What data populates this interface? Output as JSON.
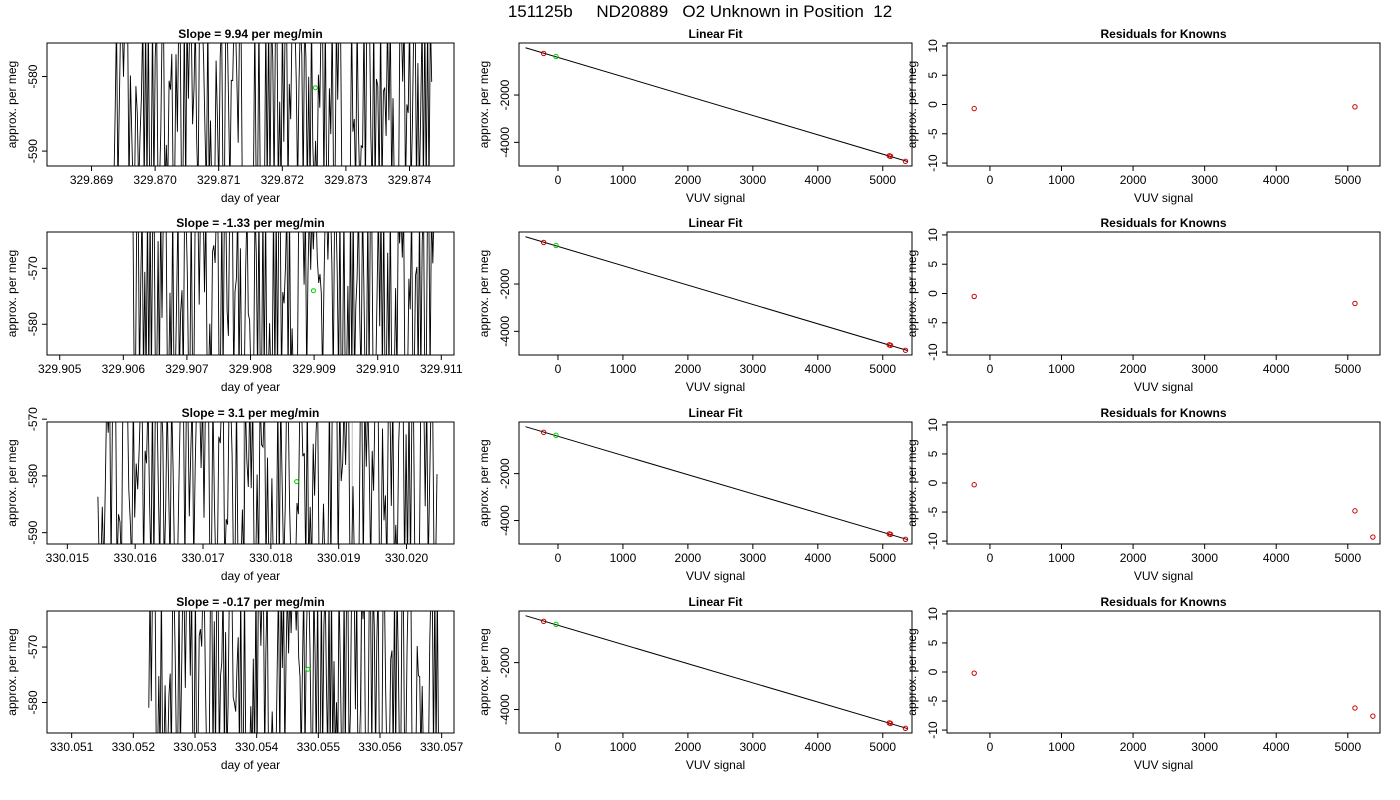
{
  "figure_title": "151125b     ND20889   O2 Unknown in Position  12",
  "colors": {
    "trace": "#000000",
    "known_point": "#cc0000",
    "unknown_point": "#00cc00",
    "fit_line": "#000000",
    "gap_line": "#bfbfbf"
  },
  "chart_data": [
    {
      "type": "line",
      "title": "Slope =  9.94  per meg/min",
      "xlabel": "day of year",
      "ylabel": "approx. per meg",
      "xlim": [
        329.8683,
        329.8747
      ],
      "ylim": [
        -592,
        -575.5
      ],
      "xticks": [
        "329.869",
        "329.870",
        "329.871",
        "329.872",
        "329.873",
        "329.874"
      ],
      "yticks": [
        "-590",
        "-580"
      ],
      "highlight_point": [
        329.87252,
        -581.5
      ],
      "gap_lines": [],
      "trace_range": [
        329.86935,
        329.87435
      ],
      "trace_seed": 3
    },
    {
      "type": "scatter",
      "title": "Linear Fit",
      "xlabel": "VUV signal",
      "ylabel": "approx. per meg",
      "xlim": [
        -600,
        5450
      ],
      "ylim": [
        -5000,
        200
      ],
      "xticks": [
        "0",
        "1000",
        "2000",
        "3000",
        "4000",
        "5000"
      ],
      "yticks": [
        "-4000",
        "-2000"
      ],
      "fit_line": [
        [
          -500,
          0
        ],
        [
          5380,
          -4810
        ]
      ],
      "knowns": [
        [
          -220,
          -240
        ],
        [
          5100,
          -4570
        ],
        [
          5120,
          -4590
        ],
        [
          5350,
          -4800
        ]
      ],
      "unknown": [
        [
          -30,
          -370
        ]
      ]
    },
    {
      "type": "scatter",
      "title": "Residuals for Knowns",
      "xlabel": "VUV signal",
      "ylabel": "approx. per meg",
      "xlim": [
        -600,
        5450
      ],
      "ylim": [
        -10.5,
        10.5
      ],
      "xticks": [
        "0",
        "1000",
        "2000",
        "3000",
        "4000",
        "5000"
      ],
      "yticks": [
        "-10",
        "-5",
        "0",
        "5",
        "10"
      ],
      "knowns": [
        [
          -220,
          -0.7
        ],
        [
          5100,
          -0.4
        ]
      ]
    },
    {
      "type": "line",
      "title": "Slope =  -1.33  per meg/min",
      "xlabel": "day of year",
      "ylabel": "approx. per meg",
      "xlim": [
        329.9048,
        329.9112
      ],
      "ylim": [
        -585.5,
        -563.5
      ],
      "xticks": [
        "329.905",
        "329.906",
        "329.907",
        "329.908",
        "329.909",
        "329.910",
        "329.911"
      ],
      "yticks": [
        "-580",
        "-570"
      ],
      "highlight_point": [
        329.90899,
        -574
      ],
      "gap_lines": [],
      "trace_range": [
        329.90615,
        329.91095
      ],
      "trace_seed": 7
    },
    {
      "type": "scatter",
      "title": "Linear Fit",
      "xlabel": "VUV signal",
      "ylabel": "approx. per meg",
      "xlim": [
        -600,
        5450
      ],
      "ylim": [
        -5000,
        200
      ],
      "xticks": [
        "0",
        "1000",
        "2000",
        "3000",
        "4000",
        "5000"
      ],
      "yticks": [
        "-4000",
        "-2000"
      ],
      "fit_line": [
        [
          -500,
          0
        ],
        [
          5380,
          -4810
        ]
      ],
      "knowns": [
        [
          -220,
          -240
        ],
        [
          5100,
          -4570
        ],
        [
          5120,
          -4590
        ],
        [
          5350,
          -4800
        ]
      ],
      "unknown": [
        [
          -30,
          -370
        ]
      ]
    },
    {
      "type": "scatter",
      "title": "Residuals for Knowns",
      "xlabel": "VUV signal",
      "ylabel": "approx. per meg",
      "xlim": [
        -600,
        5450
      ],
      "ylim": [
        -10.5,
        10.5
      ],
      "xticks": [
        "0",
        "1000",
        "2000",
        "3000",
        "4000",
        "5000"
      ],
      "yticks": [
        "-10",
        "-5",
        "0",
        "5",
        "10"
      ],
      "knowns": [
        [
          -220,
          -0.5
        ],
        [
          5100,
          -1.7
        ]
      ]
    },
    {
      "type": "line",
      "title": "Slope =  3.1  per meg/min",
      "xlabel": "day of year",
      "ylabel": "approx. per meg",
      "xlim": [
        330.0147,
        330.0207
      ],
      "ylim": [
        -592,
        -570.5
      ],
      "xticks": [
        "330.015",
        "330.016",
        "330.017",
        "330.018",
        "330.019",
        "330.020"
      ],
      "yticks": [
        "-590",
        "-580",
        "-570"
      ],
      "highlight_point": [
        330.01838,
        -581
      ],
      "gap_lines": [
        330.0176,
        330.0192
      ],
      "trace_range": [
        330.01545,
        330.02045
      ],
      "trace_seed": 11
    },
    {
      "type": "scatter",
      "title": "Linear Fit",
      "xlabel": "VUV signal",
      "ylabel": "approx. per meg",
      "xlim": [
        -600,
        5450
      ],
      "ylim": [
        -5000,
        200
      ],
      "xticks": [
        "0",
        "1000",
        "2000",
        "3000",
        "4000",
        "5000"
      ],
      "yticks": [
        "-4000",
        "-2000"
      ],
      "fit_line": [
        [
          -500,
          0
        ],
        [
          5380,
          -4810
        ]
      ],
      "knowns": [
        [
          -220,
          -240
        ],
        [
          5100,
          -4570
        ],
        [
          5120,
          -4590
        ],
        [
          5350,
          -4800
        ]
      ],
      "unknown": [
        [
          -30,
          -370
        ]
      ]
    },
    {
      "type": "scatter",
      "title": "Residuals for Knowns",
      "xlabel": "VUV signal",
      "ylabel": "approx. per meg",
      "xlim": [
        -600,
        5450
      ],
      "ylim": [
        -10.5,
        10.5
      ],
      "xticks": [
        "0",
        "1000",
        "2000",
        "3000",
        "4000",
        "5000"
      ],
      "yticks": [
        "-10",
        "-5",
        "0",
        "5",
        "10"
      ],
      "knowns": [
        [
          -220,
          -0.3
        ],
        [
          5100,
          -4.8
        ],
        [
          5350,
          -9.3
        ]
      ]
    },
    {
      "type": "line",
      "title": "Slope =  -0.17  per meg/min",
      "xlabel": "day of year",
      "ylabel": "approx. per meg",
      "xlim": [
        330.0506,
        330.0572
      ],
      "ylim": [
        -585.5,
        -563.5
      ],
      "xticks": [
        "330.051",
        "330.052",
        "330.053",
        "330.054",
        "330.055",
        "330.056",
        "330.057"
      ],
      "yticks": [
        "-580",
        "-570"
      ],
      "highlight_point": [
        330.05483,
        -574
      ],
      "gap_lines": [
        330.054,
        330.0557
      ],
      "trace_range": [
        330.05225,
        330.05695
      ],
      "trace_seed": 17
    },
    {
      "type": "scatter",
      "title": "Linear Fit",
      "xlabel": "VUV signal",
      "ylabel": "approx. per meg",
      "xlim": [
        -600,
        5450
      ],
      "ylim": [
        -5000,
        200
      ],
      "xticks": [
        "0",
        "1000",
        "2000",
        "3000",
        "4000",
        "5000"
      ],
      "yticks": [
        "-4000",
        "-2000"
      ],
      "fit_line": [
        [
          -500,
          0
        ],
        [
          5380,
          -4810
        ]
      ],
      "knowns": [
        [
          -220,
          -240
        ],
        [
          5100,
          -4570
        ],
        [
          5120,
          -4590
        ],
        [
          5350,
          -4800
        ]
      ],
      "unknown": [
        [
          -30,
          -370
        ]
      ]
    },
    {
      "type": "scatter",
      "title": "Residuals for Knowns",
      "xlabel": "VUV signal",
      "ylabel": "approx. per meg",
      "xlim": [
        -600,
        5450
      ],
      "ylim": [
        -10.5,
        10.5
      ],
      "xticks": [
        "0",
        "1000",
        "2000",
        "3000",
        "4000",
        "5000"
      ],
      "yticks": [
        "-10",
        "-5",
        "0",
        "5",
        "10"
      ],
      "knowns": [
        [
          -220,
          -0.2
        ],
        [
          5100,
          -6.2
        ],
        [
          5350,
          -7.6
        ]
      ]
    }
  ]
}
